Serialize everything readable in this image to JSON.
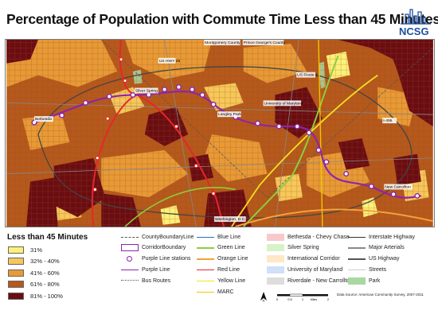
{
  "title": "Percentage of Population with Commute Time Less than 45 Minutes",
  "logo": {
    "text": "NCSG"
  },
  "map": {
    "labels": [
      "Montgomery County",
      "Prince George's County",
      "US HWY 29",
      "US Route 1",
      "Silver Spring",
      "Langley Park",
      "University of Maryland",
      "Bethesda",
      "I-495",
      "New Carrollton",
      "Washington, D.C."
    ],
    "colors": {
      "c31": "#fbf17a",
      "c32_40": "#f6c85a",
      "c41_60": "#e79a36",
      "c61_80": "#b5591c",
      "c81_100": "#6a0d13",
      "purple": "#8e24aa",
      "red": "#e8262b",
      "green": "#8ccf3b",
      "yellow": "#f4e11e",
      "orange": "#f3a23a"
    }
  },
  "legend": {
    "title": "Less than 45 Minutes",
    "classes": [
      {
        "label": "31%",
        "color": "#fbf17a"
      },
      {
        "label": "32% - 40%",
        "color": "#f6c85a"
      },
      {
        "label": "41% - 60%",
        "color": "#e79a36"
      },
      {
        "label": "61% - 80%",
        "color": "#b5591c"
      },
      {
        "label": "81% - 100%",
        "color": "#6a0d13"
      }
    ],
    "col1": [
      {
        "label": "CountyBoundaryLine",
        "type": "dash",
        "color": "#555555"
      },
      {
        "label": "CorridorBoundary",
        "type": "box",
        "color": "#8e24aa"
      },
      {
        "label": "Purple Line stations",
        "type": "circle",
        "color": "#8e24aa"
      },
      {
        "label": "Purple Line",
        "type": "line",
        "color": "#8e24aa"
      },
      {
        "label": "Bus Routes",
        "type": "dots",
        "color": "#555555"
      }
    ],
    "col2": [
      {
        "label": "Blue Line",
        "type": "line",
        "color": "#1e6fd6"
      },
      {
        "label": "Green Line",
        "type": "line",
        "color": "#8ccf3b"
      },
      {
        "label": "Orange Line",
        "type": "line",
        "color": "#f3a23a"
      },
      {
        "label": "Red Line",
        "type": "line",
        "color": "#e8262b"
      },
      {
        "label": "Yellow Line",
        "type": "line",
        "color": "#f4e11e"
      },
      {
        "label": "MARC",
        "type": "line",
        "color": "#f2c500"
      }
    ],
    "col3": [
      {
        "label": "Bethesda - Chevy Chase",
        "type": "fill",
        "color": "#f7c9cc"
      },
      {
        "label": "Silver Spring",
        "type": "fill",
        "color": "#d8f2c8"
      },
      {
        "label": "International Corridor",
        "type": "fill",
        "color": "#fde9c6"
      },
      {
        "label": "University of Maryland",
        "type": "fill",
        "color": "#cfe0f7"
      },
      {
        "label": "Riverdale - New Carrollton",
        "type": "fill",
        "color": "#dddddd"
      }
    ],
    "col4": [
      {
        "label": "Interstate Highway",
        "type": "line",
        "color": "#333333"
      },
      {
        "label": "Major Arterials",
        "type": "line",
        "color": "#888888"
      },
      {
        "label": "US Highway",
        "type": "line",
        "color": "#555555"
      },
      {
        "label": "Streets",
        "type": "line",
        "color": "#cccccc"
      },
      {
        "label": "Park",
        "type": "fill",
        "color": "#a9d8a0"
      }
    ]
  },
  "scale": {
    "ticks": [
      "0",
      "0.5",
      "1",
      "2"
    ],
    "unit": "Miles"
  },
  "north": "N",
  "source": "Data Source: American Community Survey, 2007-2011"
}
